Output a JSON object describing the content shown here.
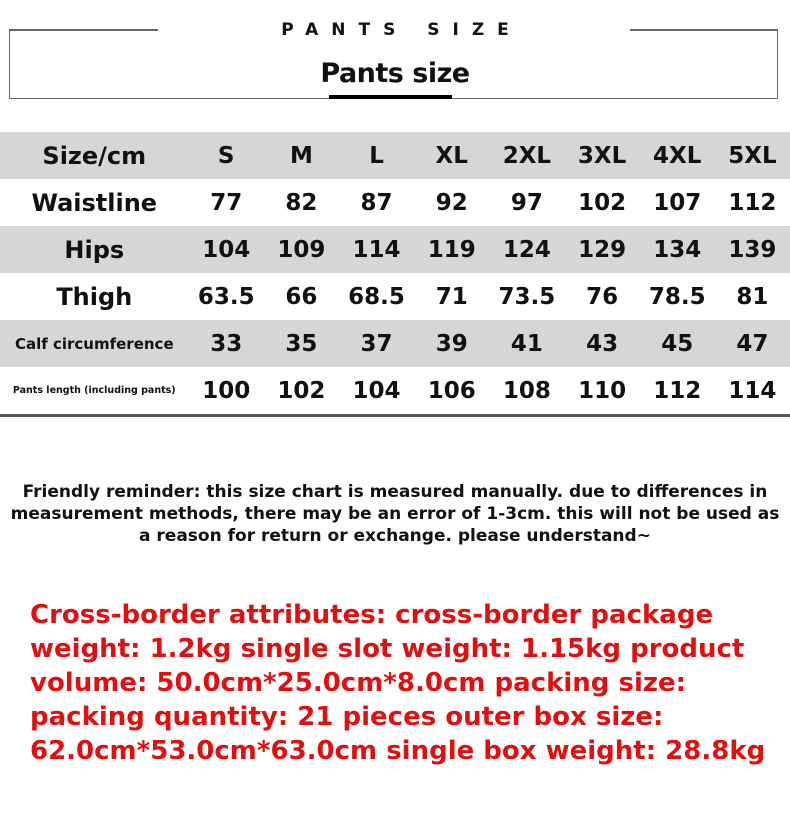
{
  "header": {
    "kicker": "PANTS SIZE",
    "title": "Pants size"
  },
  "table": {
    "columns": [
      "Size/cm",
      "S",
      "M",
      "L",
      "XL",
      "2XL",
      "3XL",
      "4XL",
      "5XL"
    ],
    "rows": [
      {
        "label": "Waistline",
        "values": [
          "77",
          "82",
          "87",
          "92",
          "97",
          "102",
          "107",
          "112"
        ]
      },
      {
        "label": "Hips",
        "values": [
          "104",
          "109",
          "114",
          "119",
          "124",
          "129",
          "134",
          "139"
        ]
      },
      {
        "label": "Thigh",
        "values": [
          "63.5",
          "66",
          "68.5",
          "71",
          "73.5",
          "76",
          "78.5",
          "81"
        ]
      },
      {
        "label": "Calf circumference",
        "values": [
          "33",
          "35",
          "37",
          "39",
          "41",
          "43",
          "45",
          "47"
        ]
      },
      {
        "label": "Pants length (including pants)",
        "values": [
          "100",
          "102",
          "104",
          "106",
          "108",
          "110",
          "112",
          "114"
        ]
      }
    ]
  },
  "note": "Friendly reminder: this size chart is measured manually. due to differences in measurement methods, there may be an error of 1-3cm. this will not be used as a reason for return or exchange. please understand~",
  "attributes": "Cross-border attributes: cross-border package weight: 1.2kg single slot weight: 1.15kg product volume: 50.0cm*25.0cm*8.0cm packing size: packing quantity: 21 pieces outer box size: 62.0cm*53.0cm*63.0cm single box weight: 28.8kg",
  "colors": {
    "row_shade": "#d6d6d6",
    "attributes_text": "#e01010"
  }
}
